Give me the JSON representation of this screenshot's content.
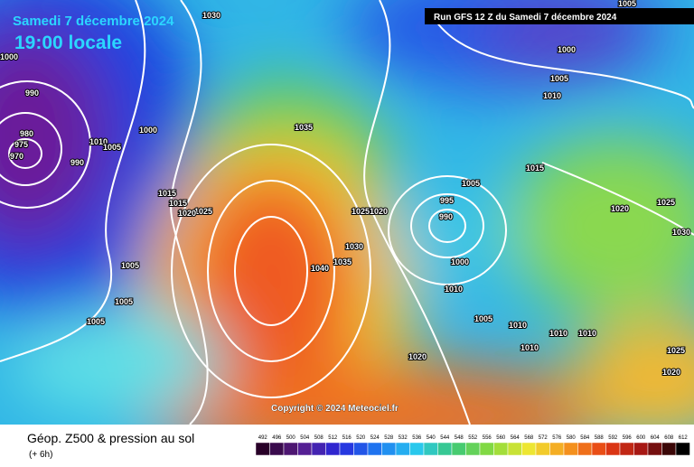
{
  "header": {
    "date": "Samedi 7 décembre 2024",
    "time": "19:00 locale",
    "run": "Run GFS 12 Z du Samedi 7 décembre 2024"
  },
  "copyright": "Copyright © 2024 Meteociel.fr",
  "legend": {
    "title": "Géop. Z500 & pression au sol",
    "step": "(+ 6h)",
    "scale": [
      492,
      496,
      500,
      504,
      508,
      512,
      516,
      520,
      524,
      528,
      532,
      536,
      540,
      544,
      548,
      552,
      556,
      560,
      564,
      568,
      572,
      576,
      580,
      584,
      588,
      592,
      596,
      600,
      604,
      608,
      612
    ]
  },
  "isobar_labels": [
    "1030",
    "1000",
    "990",
    "980",
    "975",
    "970",
    "990",
    "1010",
    "1005",
    "1000",
    "1035",
    "1015",
    "1015",
    "1025",
    "1020",
    "1005",
    "1005",
    "1005",
    "1025",
    "1020",
    "1030",
    "1035",
    "1040",
    "995",
    "990",
    "1005",
    "1000",
    "1010",
    "1005",
    "1010",
    "1010",
    "1010",
    "1010",
    "1020",
    "1015",
    "1020",
    "1025",
    "1030",
    "1025",
    "1020",
    "1005",
    "1000",
    "1005",
    "1010"
  ]
}
